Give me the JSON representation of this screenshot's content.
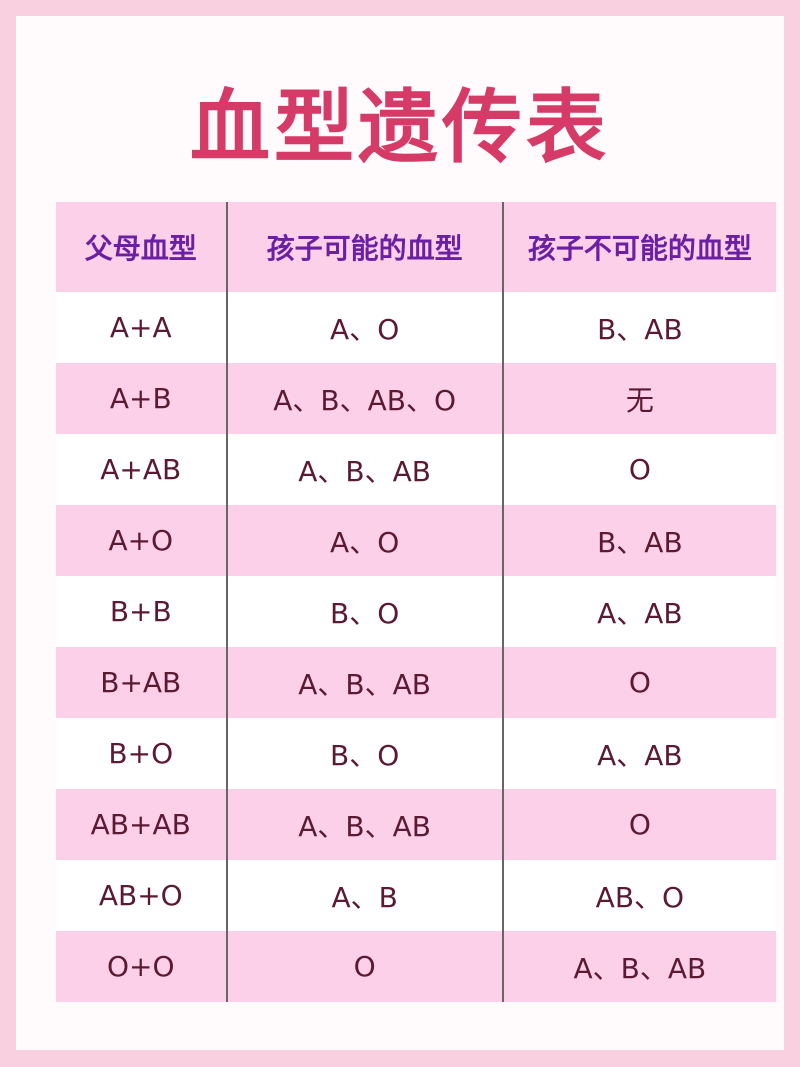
{
  "title": "血型遗传表",
  "headers": [
    "父母血型",
    "孩子可能的血型",
    "孩子不可能的血型"
  ],
  "rows": [
    [
      "A+A",
      "A、O",
      "B、AB"
    ],
    [
      "A+B",
      "A、B、AB、O",
      "无"
    ],
    [
      "A+AB",
      "A、B、AB",
      "O"
    ],
    [
      "A+O",
      "A、O",
      "B、AB"
    ],
    [
      "B+B",
      "B、O",
      "A、AB"
    ],
    [
      "B+AB",
      "A、B、AB",
      "O"
    ],
    [
      "B+O",
      "B、O",
      "A、AB"
    ],
    [
      "AB+AB",
      "A、B、AB",
      "O"
    ],
    [
      "AB+O",
      "A、B",
      "AB、O"
    ],
    [
      "O+O",
      "O",
      "A、B、AB"
    ]
  ],
  "colors": {
    "title": "#d63a66",
    "header_text": "#6b1fa3",
    "cell_text": "#5c1a32",
    "stripe": "#fbd0e8",
    "border": "#f9d0e0"
  }
}
